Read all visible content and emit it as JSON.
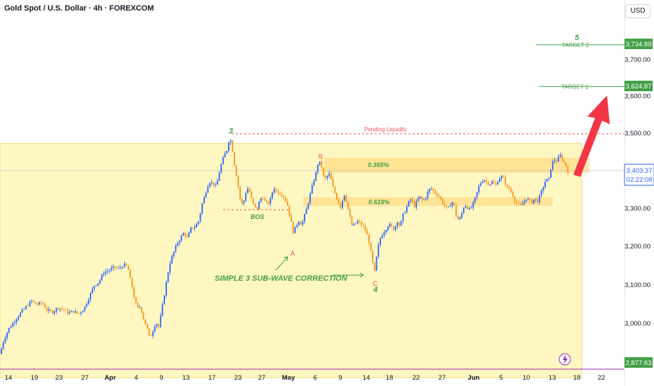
{
  "header": {
    "title": "Gold Spot / U.S. Dollar · 4h · FOREXCOM",
    "currency_button": "USD"
  },
  "colors": {
    "up": "#2962ff",
    "down": "#f7931a",
    "zone": "#fff7c2",
    "zone_border": "#f7d87a",
    "box": "#ffd77a",
    "green": "#43a047",
    "red": "#ef5350",
    "arrow": "#f23645",
    "axis_line": "#9c27b0"
  },
  "chart_data": {
    "type": "candlestick",
    "x_axis": {
      "ticks": [
        "14",
        "19",
        "23",
        "27",
        "Apr",
        "4",
        "9",
        "13",
        "17",
        "23",
        "27",
        "May",
        "6",
        "9",
        "14",
        "18",
        "22",
        "27",
        "Jun",
        "5",
        "10",
        "13",
        "18",
        "22"
      ]
    },
    "y_axis": {
      "ticks": [
        "3,700.00",
        "3,600.00",
        "3,500.00",
        "3,300.00",
        "3,200.00",
        "3,100.00",
        "3,000.00"
      ],
      "ylim": [
        2860,
        3810
      ]
    },
    "price_path": [
      [
        0,
        2920
      ],
      [
        5,
        2955
      ],
      [
        12,
        2985
      ],
      [
        22,
        3010
      ],
      [
        30,
        3030
      ],
      [
        38,
        3045
      ],
      [
        45,
        3060
      ],
      [
        52,
        3050
      ],
      [
        60,
        3055
      ],
      [
        67,
        3035
      ],
      [
        75,
        3030
      ],
      [
        82,
        3042
      ],
      [
        90,
        3038
      ],
      [
        97,
        3028
      ],
      [
        105,
        3032
      ],
      [
        112,
        3025
      ],
      [
        120,
        3040
      ],
      [
        127,
        3070
      ],
      [
        134,
        3100
      ],
      [
        141,
        3110
      ],
      [
        148,
        3135
      ],
      [
        155,
        3140
      ],
      [
        162,
        3148
      ],
      [
        170,
        3145
      ],
      [
        177,
        3155
      ],
      [
        182,
        3150
      ],
      [
        185,
        3120
      ],
      [
        188,
        3100
      ],
      [
        192,
        3060
      ],
      [
        196,
        3040
      ],
      [
        200,
        3045
      ],
      [
        205,
        3010
      ],
      [
        210,
        2985
      ],
      [
        213,
        2962
      ],
      [
        217,
        2975
      ],
      [
        222,
        3005
      ],
      [
        226,
        2990
      ],
      [
        230,
        3030
      ],
      [
        234,
        3075
      ],
      [
        238,
        3120
      ],
      [
        242,
        3160
      ],
      [
        247,
        3185
      ],
      [
        252,
        3210
      ],
      [
        257,
        3225
      ],
      [
        262,
        3240
      ],
      [
        267,
        3225
      ],
      [
        272,
        3250
      ],
      [
        278,
        3255
      ],
      [
        283,
        3270
      ],
      [
        288,
        3315
      ],
      [
        293,
        3345
      ],
      [
        298,
        3375
      ],
      [
        303,
        3370
      ],
      [
        308,
        3360
      ],
      [
        312,
        3395
      ],
      [
        316,
        3425
      ],
      [
        320,
        3445
      ],
      [
        324,
        3460
      ],
      [
        327,
        3492
      ],
      [
        330,
        3475
      ],
      [
        334,
        3420
      ],
      [
        338,
        3380
      ],
      [
        342,
        3330
      ],
      [
        346,
        3310
      ],
      [
        350,
        3345
      ],
      [
        354,
        3360
      ],
      [
        358,
        3330
      ],
      [
        362,
        3310
      ],
      [
        366,
        3300
      ],
      [
        370,
        3325
      ],
      [
        374,
        3335
      ],
      [
        378,
        3320
      ],
      [
        382,
        3315
      ],
      [
        386,
        3330
      ],
      [
        390,
        3360
      ],
      [
        394,
        3348
      ],
      [
        398,
        3345
      ],
      [
        402,
        3340
      ],
      [
        406,
        3330
      ],
      [
        410,
        3310
      ],
      [
        414,
        3275
      ],
      [
        418,
        3240
      ],
      [
        422,
        3258
      ],
      [
        426,
        3272
      ],
      [
        430,
        3260
      ],
      [
        434,
        3285
      ],
      [
        438,
        3310
      ],
      [
        442,
        3340
      ],
      [
        446,
        3370
      ],
      [
        450,
        3395
      ],
      [
        454,
        3430
      ],
      [
        458,
        3415
      ],
      [
        462,
        3378
      ],
      [
        466,
        3388
      ],
      [
        470,
        3395
      ],
      [
        474,
        3360
      ],
      [
        478,
        3340
      ],
      [
        482,
        3320
      ],
      [
        486,
        3305
      ],
      [
        490,
        3345
      ],
      [
        494,
        3320
      ],
      [
        498,
        3285
      ],
      [
        502,
        3255
      ],
      [
        506,
        3262
      ],
      [
        510,
        3270
      ],
      [
        514,
        3262
      ],
      [
        518,
        3255
      ],
      [
        522,
        3240
      ],
      [
        526,
        3215
      ],
      [
        530,
        3170
      ],
      [
        534,
        3135
      ],
      [
        538,
        3195
      ],
      [
        542,
        3225
      ],
      [
        546,
        3240
      ],
      [
        550,
        3250
      ],
      [
        554,
        3262
      ],
      [
        558,
        3255
      ],
      [
        562,
        3248
      ],
      [
        566,
        3272
      ],
      [
        570,
        3255
      ],
      [
        574,
        3285
      ],
      [
        578,
        3300
      ],
      [
        582,
        3318
      ],
      [
        586,
        3330
      ],
      [
        590,
        3308
      ],
      [
        594,
        3322
      ],
      [
        598,
        3335
      ],
      [
        602,
        3325
      ],
      [
        606,
        3330
      ],
      [
        610,
        3348
      ],
      [
        614,
        3358
      ],
      [
        618,
        3348
      ],
      [
        622,
        3342
      ],
      [
        626,
        3335
      ],
      [
        630,
        3322
      ],
      [
        634,
        3310
      ],
      [
        638,
        3300
      ],
      [
        642,
        3315
      ],
      [
        646,
        3322
      ],
      [
        650,
        3285
      ],
      [
        654,
        3270
      ],
      [
        658,
        3290
      ],
      [
        662,
        3315
      ],
      [
        666,
        3305
      ],
      [
        670,
        3300
      ],
      [
        674,
        3315
      ],
      [
        678,
        3335
      ],
      [
        682,
        3360
      ],
      [
        686,
        3375
      ],
      [
        690,
        3380
      ],
      [
        694,
        3372
      ],
      [
        698,
        3368
      ],
      [
        702,
        3375
      ],
      [
        706,
        3362
      ],
      [
        710,
        3380
      ],
      [
        714,
        3388
      ],
      [
        718,
        3382
      ],
      [
        722,
        3360
      ],
      [
        726,
        3355
      ],
      [
        730,
        3342
      ],
      [
        734,
        3322
      ],
      [
        738,
        3315
      ],
      [
        742,
        3310
      ],
      [
        746,
        3320
      ],
      [
        750,
        3330
      ],
      [
        754,
        3325
      ],
      [
        758,
        3320
      ],
      [
        762,
        3330
      ],
      [
        766,
        3322
      ],
      [
        770,
        3340
      ],
      [
        774,
        3360
      ],
      [
        778,
        3380
      ],
      [
        782,
        3378
      ],
      [
        786,
        3420
      ],
      [
        790,
        3432
      ],
      [
        794,
        3428
      ],
      [
        798,
        3445
      ],
      [
        802,
        3430
      ],
      [
        806,
        3418
      ],
      [
        810,
        3398
      ]
    ],
    "current_price": {
      "value": "3,403.37",
      "countdown": "02:22:08"
    },
    "min_label": "2,877.63",
    "zone": {
      "price_top": 3475,
      "price_bottom": 2857
    },
    "resistance_boxes": [
      {
        "label": "0.365%",
        "price_top": 3437,
        "price_bottom": 3397
      },
      {
        "label": "0.618%",
        "price_top": 3333,
        "price_bottom": 3310
      }
    ],
    "levels": [
      {
        "label": "TARGET 2",
        "price": 3734.89,
        "value_label": "3,734.89"
      },
      {
        "label": "TARGET 1",
        "price": 3624.87,
        "value_label": "3,624.87"
      }
    ],
    "liquidity": {
      "label": "Pending Liquidity",
      "price": 3500
    },
    "bos": {
      "label": "BOS",
      "price": 3300
    },
    "waves": {
      "w3": "3",
      "w4": "4",
      "w5": "5",
      "a": "A",
      "b": "B",
      "c": "C"
    },
    "correction_label": "SIMPLE 3 SUB-WAVE CORRECTION"
  }
}
